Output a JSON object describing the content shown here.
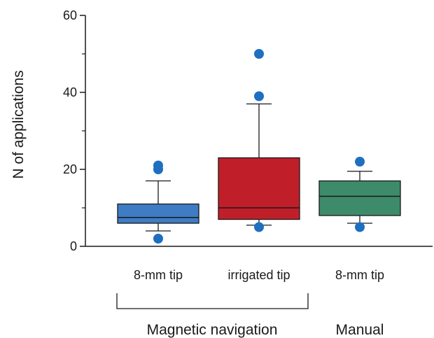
{
  "chart_data": {
    "type": "boxplot",
    "ylabel": "N of applications",
    "ylim": [
      0,
      60
    ],
    "yticks": [
      0,
      20,
      40,
      60
    ],
    "ytick_labels": [
      "0",
      "20",
      "40",
      "60"
    ],
    "categories": [
      "8-mm tip",
      "irrigated tip",
      "8-mm tip"
    ],
    "groups": [
      {
        "label": "Magnetic navigation",
        "categories": [
          0,
          1
        ],
        "bracket": true
      },
      {
        "label": "Manual",
        "categories": [
          2
        ],
        "bracket": false
      }
    ],
    "boxes": [
      {
        "category": "8-mm tip",
        "group": "Magnetic navigation",
        "whisker_low": 4,
        "q1": 6,
        "median": 7.5,
        "q3": 11,
        "whisker_high": 17,
        "outliers": [
          2,
          20,
          21
        ],
        "color": "#3e7cc4"
      },
      {
        "category": "irrigated tip",
        "group": "Magnetic navigation",
        "whisker_low": 5.5,
        "q1": 7,
        "median": 10,
        "q3": 23,
        "whisker_high": 37,
        "outliers": [
          5,
          39,
          50
        ],
        "color": "#c01f2a"
      },
      {
        "category": "8-mm tip",
        "group": "Manual",
        "whisker_low": 6,
        "q1": 8,
        "median": 13,
        "q3": 17,
        "whisker_high": 19.5,
        "outliers": [
          5,
          22
        ],
        "color": "#3d8b6a"
      }
    ],
    "outlier_color": "#1f6fc0",
    "grid": false
  }
}
